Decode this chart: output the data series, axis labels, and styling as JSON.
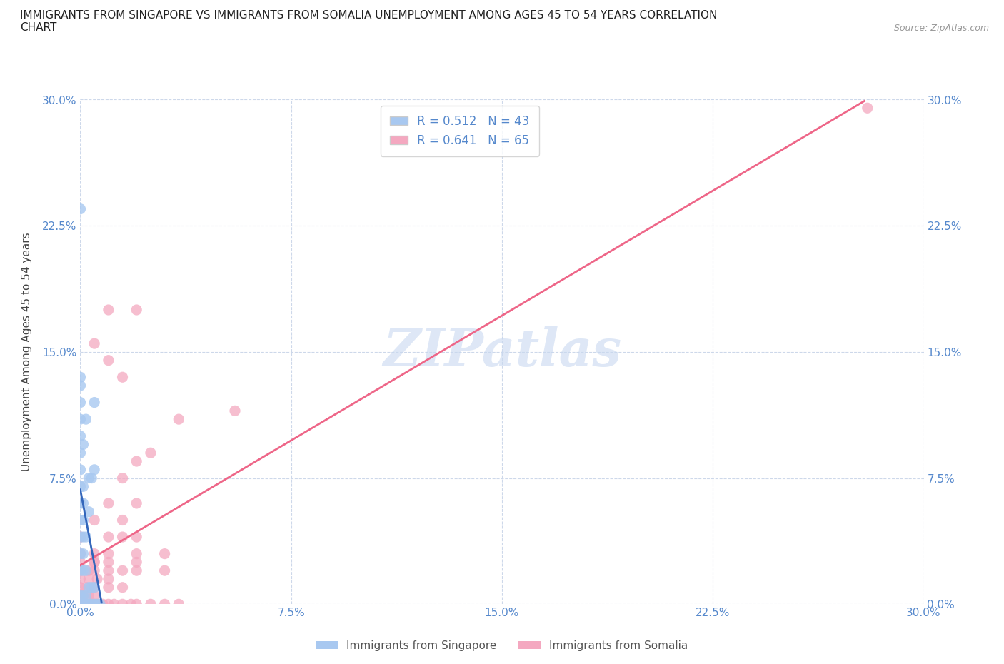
{
  "title": "IMMIGRANTS FROM SINGAPORE VS IMMIGRANTS FROM SOMALIA UNEMPLOYMENT AMONG AGES 45 TO 54 YEARS CORRELATION\nCHART",
  "source": "Source: ZipAtlas.com",
  "ylabel": "Unemployment Among Ages 45 to 54 years",
  "xlim": [
    0.0,
    0.3
  ],
  "ylim": [
    0.0,
    0.3
  ],
  "xticks": [
    0.0,
    0.075,
    0.15,
    0.225,
    0.3
  ],
  "yticks": [
    0.0,
    0.075,
    0.15,
    0.225,
    0.3
  ],
  "xticklabels": [
    "0.0%",
    "7.5%",
    "15.0%",
    "22.5%",
    "30.0%"
  ],
  "yticklabels": [
    "0.0%",
    "7.5%",
    "15.0%",
    "22.5%",
    "30.0%"
  ],
  "right_yticklabels": [
    "0.0%",
    "7.5%",
    "15.0%",
    "22.5%",
    "30.0%"
  ],
  "singapore_color": "#a8c8f0",
  "somalia_color": "#f4a8c0",
  "singapore_R": 0.512,
  "singapore_N": 43,
  "somalia_R": 0.641,
  "somalia_N": 65,
  "singapore_trendline_color": "#3366bb",
  "singapore_trendline_dash_color": "#aabbdd",
  "somalia_trendline_color": "#ee6688",
  "watermark": "ZIPatlas",
  "watermark_color": "#c8d8f0",
  "legend_label_singapore": "Immigrants from Singapore",
  "legend_label_somalia": "Immigrants from Somalia",
  "background_color": "#ffffff",
  "grid_color": "#c8d4e8",
  "tick_color": "#5588cc",
  "singapore_points": [
    [
      0.0,
      0.0
    ],
    [
      0.001,
      0.0
    ],
    [
      0.002,
      0.0
    ],
    [
      0.003,
      0.0
    ],
    [
      0.004,
      0.0
    ],
    [
      0.005,
      0.0
    ],
    [
      0.006,
      0.0
    ],
    [
      0.007,
      0.0
    ],
    [
      0.0,
      0.005
    ],
    [
      0.001,
      0.005
    ],
    [
      0.002,
      0.005
    ],
    [
      0.003,
      0.01
    ],
    [
      0.004,
      0.01
    ],
    [
      0.005,
      0.01
    ],
    [
      0.0,
      0.02
    ],
    [
      0.001,
      0.02
    ],
    [
      0.002,
      0.02
    ],
    [
      0.0,
      0.03
    ],
    [
      0.001,
      0.03
    ],
    [
      0.0,
      0.04
    ],
    [
      0.001,
      0.04
    ],
    [
      0.002,
      0.04
    ],
    [
      0.0,
      0.05
    ],
    [
      0.001,
      0.05
    ],
    [
      0.0,
      0.06
    ],
    [
      0.001,
      0.06
    ],
    [
      0.0,
      0.07
    ],
    [
      0.001,
      0.07
    ],
    [
      0.0,
      0.08
    ],
    [
      0.0,
      0.09
    ],
    [
      0.0,
      0.1
    ],
    [
      0.0,
      0.11
    ],
    [
      0.0,
      0.12
    ],
    [
      0.0,
      0.13
    ],
    [
      0.003,
      0.075
    ],
    [
      0.004,
      0.075
    ],
    [
      0.005,
      0.08
    ],
    [
      0.0,
      0.235
    ],
    [
      0.005,
      0.12
    ],
    [
      0.001,
      0.095
    ],
    [
      0.0,
      0.135
    ],
    [
      0.002,
      0.11
    ],
    [
      0.003,
      0.055
    ]
  ],
  "somalia_points": [
    [
      0.0,
      0.0
    ],
    [
      0.001,
      0.0
    ],
    [
      0.002,
      0.0
    ],
    [
      0.003,
      0.0
    ],
    [
      0.005,
      0.0
    ],
    [
      0.006,
      0.0
    ],
    [
      0.008,
      0.0
    ],
    [
      0.01,
      0.0
    ],
    [
      0.012,
      0.0
    ],
    [
      0.015,
      0.0
    ],
    [
      0.018,
      0.0
    ],
    [
      0.02,
      0.0
    ],
    [
      0.025,
      0.0
    ],
    [
      0.03,
      0.0
    ],
    [
      0.035,
      0.0
    ],
    [
      0.0,
      0.005
    ],
    [
      0.001,
      0.005
    ],
    [
      0.003,
      0.005
    ],
    [
      0.005,
      0.005
    ],
    [
      0.0,
      0.01
    ],
    [
      0.002,
      0.01
    ],
    [
      0.005,
      0.01
    ],
    [
      0.01,
      0.01
    ],
    [
      0.015,
      0.01
    ],
    [
      0.0,
      0.015
    ],
    [
      0.003,
      0.015
    ],
    [
      0.006,
      0.015
    ],
    [
      0.01,
      0.015
    ],
    [
      0.0,
      0.02
    ],
    [
      0.003,
      0.02
    ],
    [
      0.005,
      0.02
    ],
    [
      0.01,
      0.02
    ],
    [
      0.015,
      0.02
    ],
    [
      0.02,
      0.02
    ],
    [
      0.0,
      0.025
    ],
    [
      0.005,
      0.025
    ],
    [
      0.01,
      0.025
    ],
    [
      0.02,
      0.025
    ],
    [
      0.0,
      0.03
    ],
    [
      0.005,
      0.03
    ],
    [
      0.01,
      0.03
    ],
    [
      0.02,
      0.03
    ],
    [
      0.03,
      0.03
    ],
    [
      0.0,
      0.04
    ],
    [
      0.01,
      0.04
    ],
    [
      0.02,
      0.04
    ],
    [
      0.005,
      0.05
    ],
    [
      0.015,
      0.05
    ],
    [
      0.01,
      0.06
    ],
    [
      0.02,
      0.06
    ],
    [
      0.015,
      0.075
    ],
    [
      0.02,
      0.085
    ],
    [
      0.025,
      0.09
    ],
    [
      0.035,
      0.11
    ],
    [
      0.015,
      0.135
    ],
    [
      0.02,
      0.175
    ],
    [
      0.01,
      0.175
    ],
    [
      0.005,
      0.155
    ],
    [
      0.01,
      0.145
    ],
    [
      0.055,
      0.115
    ],
    [
      0.0,
      0.04
    ],
    [
      0.005,
      0.025
    ],
    [
      0.28,
      0.295
    ],
    [
      0.015,
      0.04
    ],
    [
      0.03,
      0.02
    ]
  ]
}
